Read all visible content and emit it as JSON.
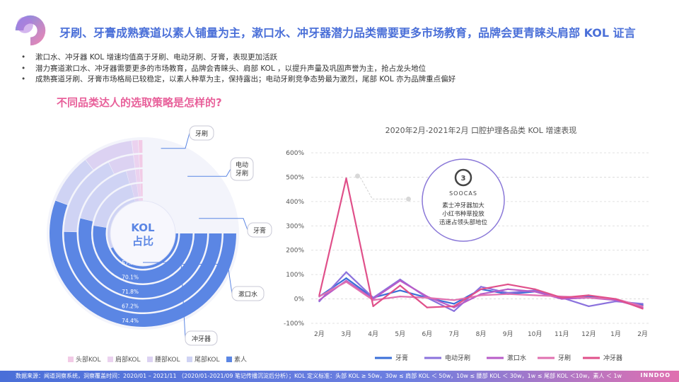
{
  "title": "牙刷、牙膏成熟赛道以素人铺量为主，漱口水、冲牙器潜力品类需要更多市场教育，品牌会更青睐头肩部 KOL 证言",
  "bullets": [
    "漱口水、冲牙器 KOL 增速均值高于牙刷、电动牙刷、牙膏，表现更加活跃",
    "潜力赛道漱口水、冲牙器需要更多的市场教育，品牌会青睐头、肩部 KOL ，以提升声量及巩固声誉为主，抢占龙头地位",
    "成熟赛道牙刷、牙膏市场格局已较稳定，以素人种草为主，保持露出；电动牙刷竞争态势最为激烈，尾部 KOL 亦为品牌重点偏好"
  ],
  "subtitle": "不同品类达人的选取策略是怎样的?",
  "footer": "数据来源：闻道洞察系统，洞察覆盖时间：2020/01 – 2021/11 （2020/01-2021/09 笔记传播沉淀后分析）；KOL 定义标准：头部 KOL ≥ 50w，30w ≤ 肩部 KOL ＜ 50w，10w ≤ 腰部 KOL ＜ 30w，1w ≤ 尾部 KOL ＜10w，素人 ＜ 1w",
  "brand": "INNDOO",
  "chart_data": [
    {
      "type": "radial-bar",
      "center_label": [
        "KOL",
        "占比"
      ],
      "legend": [
        "头部KOL",
        "肩部KOL",
        "腰部KOL",
        "尾部KOL",
        "素人"
      ],
      "colors": {
        "头部KOL": "#f2cbe6",
        "肩部KOL": "#ebd2ef",
        "腰部KOL": "#dcd2f2",
        "尾部KOL": "#cfd3f4",
        "素人": "#5b86e4"
      },
      "categories": [
        "牙刷",
        "电动牙刷",
        "牙膏",
        "漱口水",
        "冲牙器"
      ],
      "ring_order_outer_to_inner": [
        "牙刷",
        "电动牙刷",
        "牙膏",
        "漱口水",
        "冲牙器"
      ],
      "素人_labels": [
        "74.4%",
        "67.2%",
        "71.8%",
        "70.1%",
        "57.5%"
      ],
      "素人_values": [
        74.4,
        67.2,
        71.8,
        70.1,
        57.5
      ],
      "ring_segments": [
        {
          "category": "牙刷",
          "values": [
            1,
            1.5,
            11.5,
            11.6,
            74.4
          ]
        },
        {
          "category": "电动牙刷",
          "values": [
            1,
            1.5,
            7,
            23.3,
            67.2
          ]
        },
        {
          "category": "牙膏",
          "values": [
            1,
            1.5,
            3,
            22.7,
            71.8
          ]
        },
        {
          "category": "漱口水",
          "values": [
            1,
            1.5,
            2.5,
            24.9,
            70.1
          ]
        },
        {
          "category": "冲牙器",
          "values": [
            1,
            1.5,
            2.5,
            37.5,
            57.5
          ]
        }
      ]
    },
    {
      "type": "line",
      "title": "2020年2月-2021年2月 口腔护理各品类 KOL 增速表现",
      "categories": [
        "2月",
        "3月",
        "4月",
        "5月",
        "6月",
        "7月",
        "8月",
        "9月",
        "10月",
        "11月",
        "12月",
        "1月",
        "2月"
      ],
      "ylim": [
        -100,
        600
      ],
      "yticks": [
        -100,
        0,
        100,
        200,
        300,
        400,
        500,
        600
      ],
      "ytick_labels": [
        "-100%",
        "0%",
        "100%",
        "200%",
        "300%",
        "400%",
        "500%",
        "600%"
      ],
      "grid": "horizontal-dashed",
      "legend_position": "bottom",
      "series": [
        {
          "name": "牙膏",
          "color": "#3a6fd8",
          "values": [
            10,
            85,
            5,
            35,
            5,
            -20,
            40,
            20,
            30,
            5,
            10,
            -5,
            -25
          ]
        },
        {
          "name": "电动牙刷",
          "color": "#8b72dd",
          "values": [
            -10,
            110,
            5,
            80,
            5,
            -50,
            50,
            25,
            35,
            5,
            -30,
            -10,
            -20
          ]
        },
        {
          "name": "漱口水",
          "color": "#b85cc8",
          "values": [
            -5,
            75,
            0,
            75,
            10,
            -35,
            20,
            40,
            30,
            0,
            5,
            -5,
            -35
          ]
        },
        {
          "name": "牙刷",
          "color": "#e070b0",
          "values": [
            10,
            70,
            -5,
            10,
            5,
            -5,
            15,
            20,
            15,
            10,
            5,
            0,
            -30
          ]
        },
        {
          "name": "冲牙器",
          "color": "#e0508a",
          "values": [
            15,
            495,
            -30,
            55,
            -35,
            -30,
            40,
            60,
            40,
            5,
            15,
            0,
            -40
          ]
        }
      ],
      "annotation": {
        "month": "3月",
        "logo_text": "SOOCAS",
        "lines": [
          "素士冲牙器加大",
          "小红书种草投放",
          "迅速占领头部地位"
        ]
      }
    }
  ]
}
